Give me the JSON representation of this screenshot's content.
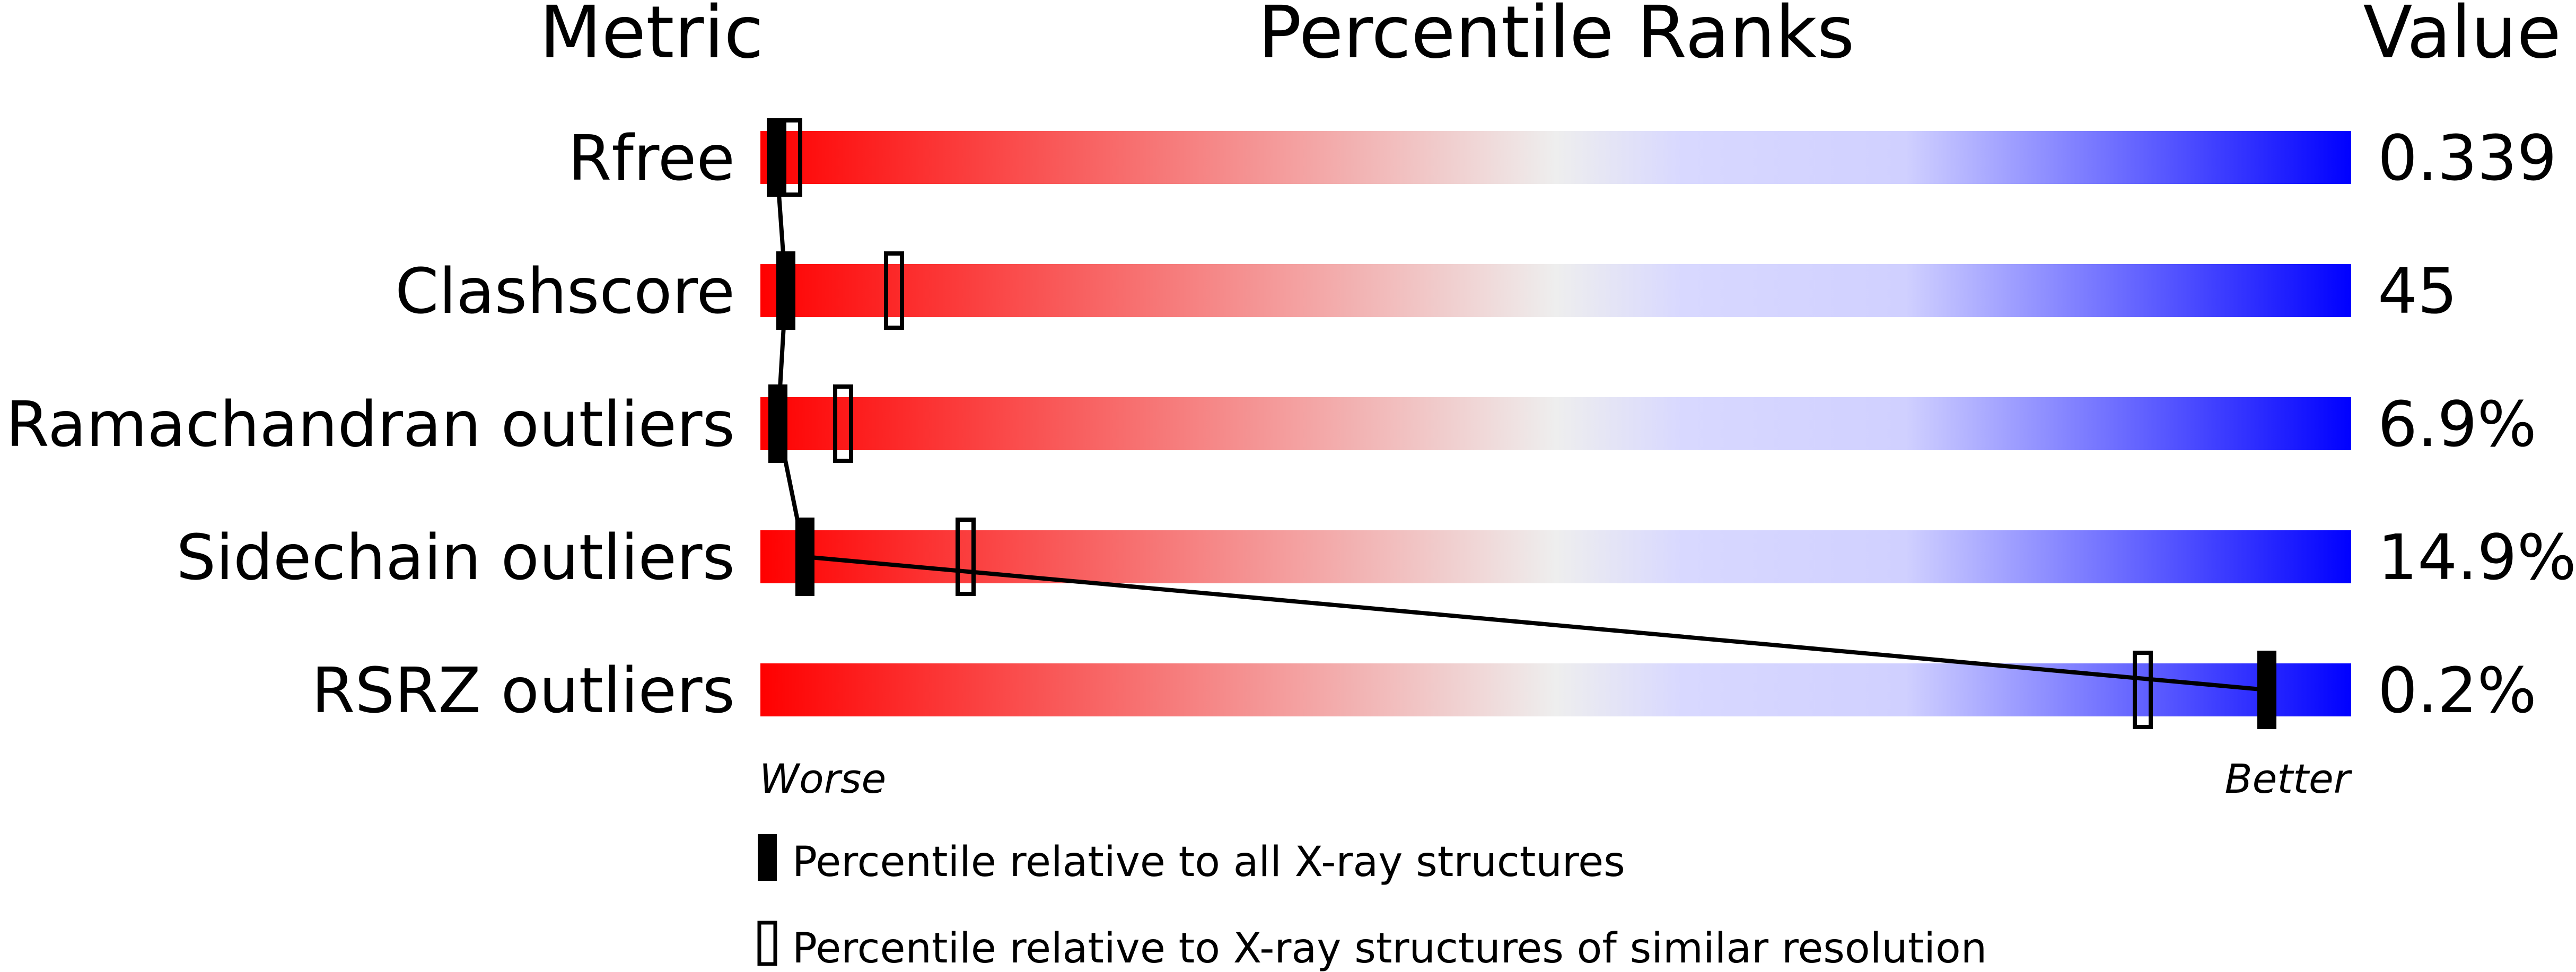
{
  "chart_data": {
    "type": "bar",
    "headers": {
      "metric": "Metric",
      "ranks": "Percentile Ranks",
      "value": "Value"
    },
    "xlim": [
      0,
      100
    ],
    "axis_ends": {
      "worse": "Worse",
      "better": "Better"
    },
    "colors": {
      "worse": "#ff0000",
      "mid": "#eeeeee",
      "better": "#0000ff",
      "marker": "#000000"
    },
    "metrics": [
      {
        "name": "Rfree",
        "value": "0.339",
        "percentile_all": 1,
        "percentile_similar": 2
      },
      {
        "name": "Clashscore",
        "value": "45",
        "percentile_all": 1.6,
        "percentile_similar": 8.4
      },
      {
        "name": "Ramachandran outliers",
        "value": "6.9%",
        "percentile_all": 1.1,
        "percentile_similar": 5.2
      },
      {
        "name": "Sidechain outliers",
        "value": "14.9%",
        "percentile_all": 2.8,
        "percentile_similar": 12.9
      },
      {
        "name": "RSRZ outliers",
        "value": "0.2%",
        "percentile_all": 94.7,
        "percentile_similar": 86.9
      }
    ],
    "legend": [
      {
        "marker": "filled",
        "label": "Percentile relative to all X-ray structures"
      },
      {
        "marker": "hollow",
        "label": "Percentile relative to X-ray structures of similar resolution"
      }
    ]
  }
}
